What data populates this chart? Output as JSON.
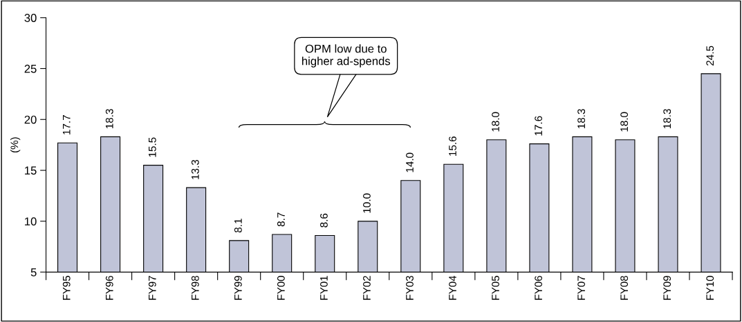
{
  "chart_data": {
    "type": "bar",
    "ylabel": "(%)",
    "categories": [
      "FY95",
      "FY96",
      "FY97",
      "FY98",
      "FY99",
      "FY00",
      "FY01",
      "FY02",
      "FY03",
      "FY04",
      "FY05",
      "FY06",
      "FY07",
      "FY08",
      "FY09",
      "FY10"
    ],
    "values": [
      17.7,
      18.3,
      15.5,
      13.3,
      8.1,
      8.7,
      8.6,
      10.0,
      14.0,
      15.6,
      18.0,
      17.6,
      18.3,
      18.0,
      18.3,
      24.5
    ],
    "value_labels": [
      "17.7",
      "18.3",
      "15.5",
      "13.3",
      "8.1",
      "8.7",
      "8.6",
      "10.0",
      "14.0",
      "15.6",
      "18.0",
      "17.6",
      "18.3",
      "18.0",
      "18.3",
      "24.5"
    ],
    "color": "#c0c4d8",
    "ylim": [
      5,
      30
    ],
    "yticks": [
      5,
      10,
      15,
      20,
      25,
      30
    ],
    "annotations": [
      "OPM low due to\nhigher ad-spends"
    ],
    "grid": false,
    "legend": false
  }
}
